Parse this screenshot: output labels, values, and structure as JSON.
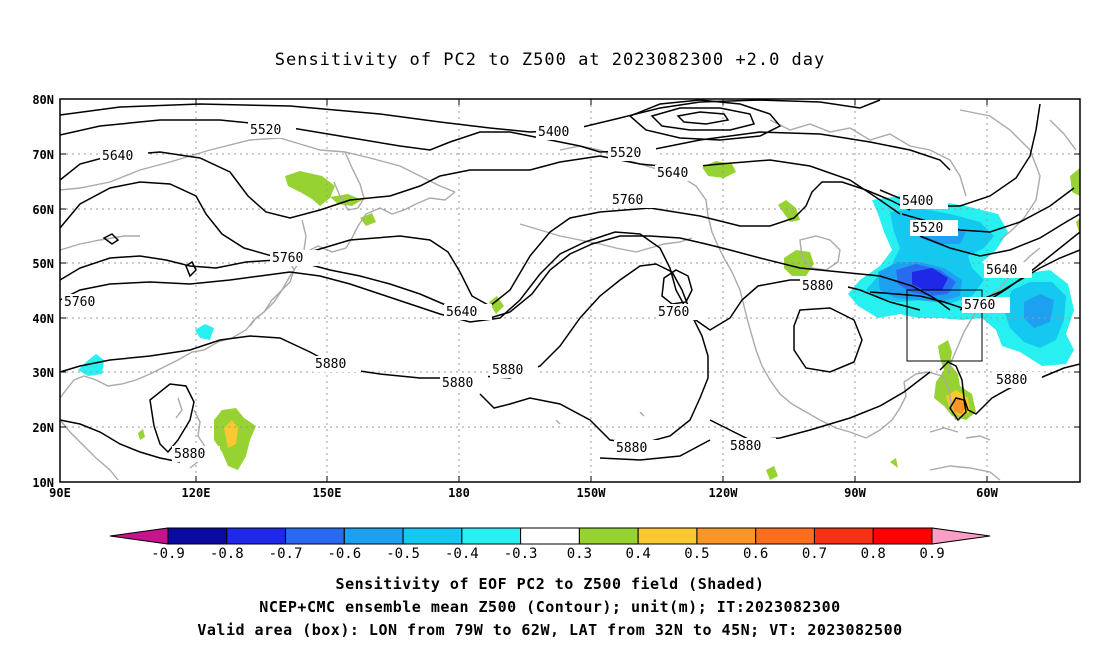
{
  "title": "Sensitivity of PC2 to Z500 at 2023082300 +2.0 day",
  "lat_labels": [
    "80N",
    "70N",
    "60N",
    "50N",
    "40N",
    "30N",
    "20N",
    "10N"
  ],
  "lon_labels": [
    "90E",
    "120E",
    "150E",
    "180",
    "150W",
    "120W",
    "90W",
    "60W"
  ],
  "contour_labels": {
    "c5520a": "5520",
    "c5400a": "5400",
    "c5640a": "5640",
    "c5520b": "5520",
    "c5640b": "5640",
    "c5760a": "5760",
    "c5400b": "5400",
    "c5520c": "5520",
    "c5640c": "5640",
    "c5760b": "5760",
    "c5760c": "5760",
    "c5880a": "5880",
    "c5640d": "5640",
    "c5760d": "5760",
    "c5760e": "5760",
    "c5880b": "5880",
    "c5880c": "5880",
    "c5880d": "5880",
    "c5880e": "5880",
    "c5880f": "5880",
    "c5880g": "5880",
    "c5880h": "5880"
  },
  "colorbar": {
    "labels": [
      "-0.9",
      "-0.8",
      "-0.7",
      "-0.6",
      "-0.5",
      "-0.4",
      "-0.3",
      "0.3",
      "0.4",
      "0.5",
      "0.6",
      "0.7",
      "0.8",
      "0.9"
    ],
    "colors": [
      "#0a0aa0",
      "#1e28e6",
      "#2a6af0",
      "#1ea0f0",
      "#14c8f0",
      "#28f0f0",
      "#ffffff",
      "#96d232",
      "#fac832",
      "#fa9628",
      "#fa6e1e",
      "#f53214",
      "#ff0000"
    ],
    "low_tri_color": "#c8148c",
    "high_tri_color": "#fa9ec8"
  },
  "colors": {
    "pos_green": "#96d232",
    "pos_yellow": "#fac832",
    "pos_orange": "#fa9628",
    "pos_red": "#f53214",
    "neg_cyan": "#28f0f0",
    "neg_sky": "#14c8f0",
    "neg_blue": "#1ea0f0",
    "neg_mid": "#2a6af0",
    "neg_dark": "#1e28e6",
    "coast": "#aaaaaa",
    "contour": "#000000"
  },
  "captions": [
    "Sensitivity of EOF PC2 to Z500 field (Shaded)",
    "NCEP+CMC ensemble mean Z500 (Contour); unit(m); IT:2023082300",
    "Valid area (box): LON from 79W to 62W, LAT from 32N to 45N; VT: 2023082500"
  ]
}
